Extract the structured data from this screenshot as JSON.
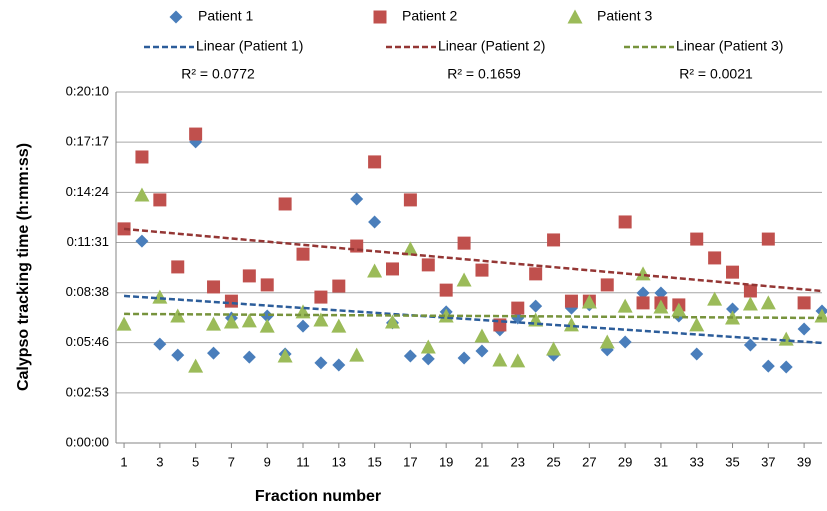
{
  "chart_data": {
    "type": "scatter",
    "x_label": "Fraction number",
    "y_label": "Calypso tracking time (h:mm:ss)",
    "x": [
      1,
      2,
      3,
      4,
      5,
      6,
      7,
      8,
      9,
      10,
      11,
      12,
      13,
      14,
      15,
      16,
      17,
      18,
      19,
      20,
      21,
      22,
      23,
      24,
      25,
      26,
      27,
      28,
      29,
      30,
      31,
      32,
      33,
      34,
      35,
      36,
      37,
      38,
      39,
      40
    ],
    "xlim": [
      0.55,
      40
    ],
    "xticks": [
      1,
      3,
      5,
      7,
      9,
      11,
      13,
      15,
      17,
      19,
      21,
      23,
      25,
      27,
      29,
      31,
      33,
      35,
      37,
      39
    ],
    "ylim": [
      0,
      1210
    ],
    "yticks": [
      {
        "value": 0,
        "label": "0:00:00"
      },
      {
        "value": 173,
        "label": "0:02:53"
      },
      {
        "value": 346,
        "label": "0:05:46"
      },
      {
        "value": 518,
        "label": "0:08:38"
      },
      {
        "value": 691,
        "label": "0:11:31"
      },
      {
        "value": 864,
        "label": "0:14:24"
      },
      {
        "value": 1037,
        "label": "0:17:17"
      },
      {
        "value": 1210,
        "label": "0:20:10"
      }
    ],
    "grid": true,
    "series": [
      {
        "name": "Patient 1",
        "color": "#4a7ebb",
        "marker": "diamond",
        "values": [
          null,
          696,
          341,
          303,
          1038,
          310,
          431,
          296,
          438,
          307,
          403,
          276,
          269,
          841,
          762,
          414,
          300,
          290,
          452,
          293,
          317,
          390,
          431,
          472,
          303,
          465,
          476,
          321,
          348,
          517,
          517,
          438,
          307,
          null,
          462,
          338,
          265,
          262,
          393,
          455
        ]
      },
      {
        "name": "Patient 2",
        "color": "#c0504d",
        "marker": "square",
        "values": [
          738,
          986,
          838,
          607,
          1065,
          538,
          489,
          576,
          545,
          824,
          651,
          503,
          541,
          679,
          969,
          600,
          838,
          614,
          527,
          689,
          596,
          407,
          465,
          583,
          700,
          489,
          489,
          545,
          762,
          483,
          483,
          476,
          703,
          638,
          589,
          524,
          703,
          null,
          483,
          null
        ]
      },
      {
        "name": "Patient 3",
        "color": "#9bbb59",
        "marker": "triangle",
        "values": [
          410,
          855,
          503,
          438,
          265,
          410,
          417,
          421,
          403,
          300,
          452,
          424,
          403,
          303,
          593,
          417,
          669,
          331,
          438,
          562,
          369,
          286,
          283,
          424,
          324,
          407,
          486,
          348,
          472,
          583,
          469,
          458,
          407,
          496,
          431,
          479,
          483,
          358,
          null,
          438
        ]
      }
    ],
    "trendlines": [
      {
        "name": "Linear (Patient 1)",
        "color": "#2c5d9a",
        "x": [
          1,
          40
        ],
        "values": [
          507,
          345
        ],
        "r2": "R² = 0.0772"
      },
      {
        "name": "Linear (Patient 2)",
        "color": "#943634",
        "x": [
          1,
          40
        ],
        "values": [
          738,
          524
        ],
        "r2": "R² = 0.1659"
      },
      {
        "name": "Linear (Patient 3)",
        "color": "#77933c",
        "x": [
          1,
          40
        ],
        "values": [
          445,
          431
        ],
        "r2": "R² = 0.0021"
      }
    ]
  }
}
